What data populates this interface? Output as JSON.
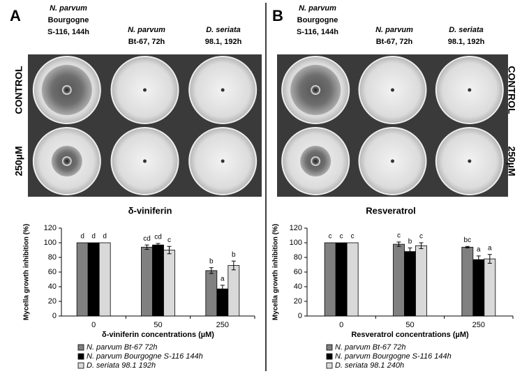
{
  "panels": [
    {
      "label": "A",
      "columns": [
        {
          "lines": [
            "N. parvum",
            "Bourgogne",
            "S-116, 144h"
          ]
        },
        {
          "lines": [
            "N. parvum",
            "Bt-67, 72h"
          ]
        },
        {
          "lines": [
            "D. seriata",
            "98.1, 192h"
          ]
        }
      ],
      "rows": [
        "CONTROL",
        "250µM"
      ]
    },
    {
      "label": "B",
      "columns": [
        {
          "lines": [
            "N. parvum",
            "Bourgogne",
            "S-116, 144h"
          ]
        },
        {
          "lines": [
            "N. parvum",
            "Bt-67, 72h"
          ]
        },
        {
          "lines": [
            "D. seriata",
            "98.1, 192h"
          ]
        }
      ],
      "rows": [
        "CONTROL",
        "250µM"
      ]
    }
  ],
  "chart_data": [
    {
      "type": "bar",
      "title": "δ-viniferin",
      "x_label": "δ-viniferin concentrations (µM)",
      "y_label": "Mycella growth inhibition (%)",
      "categories": [
        "0",
        "50",
        "250"
      ],
      "ylim": [
        0,
        120
      ],
      "yticks": [
        0,
        20,
        40,
        60,
        80,
        100,
        120
      ],
      "series": [
        {
          "name": "N. parvum Bt-67 72h",
          "color": "#808080",
          "values": [
            100,
            94,
            62
          ],
          "errors": [
            0,
            3,
            4
          ],
          "letters": [
            "d",
            "cd",
            "b"
          ]
        },
        {
          "name": "N. parvum Bourgogne S-116 144h",
          "color": "#000000",
          "values": [
            100,
            97,
            37
          ],
          "errors": [
            0,
            2,
            5
          ],
          "letters": [
            "d",
            "cd",
            "a"
          ]
        },
        {
          "name": "D. seriata 98.1 192h",
          "color": "#d9d9d9",
          "values": [
            100,
            90,
            69
          ],
          "errors": [
            0,
            5,
            6
          ],
          "letters": [
            "d",
            "c",
            "b"
          ]
        }
      ]
    },
    {
      "type": "bar",
      "title": "Resveratrol",
      "x_label": "Resveratrol concentrations (µM)",
      "y_label": "Mycella growth inhibition (%)",
      "categories": [
        "0",
        "50",
        "250"
      ],
      "ylim": [
        0,
        120
      ],
      "yticks": [
        0,
        20,
        40,
        60,
        80,
        100,
        120
      ],
      "series": [
        {
          "name": "N. parvum Bt-67 72h",
          "color": "#808080",
          "values": [
            100,
            98,
            94
          ],
          "errors": [
            0,
            3,
            1
          ],
          "letters": [
            "c",
            "c",
            "bc"
          ]
        },
        {
          "name": "N. parvum Bourgogne S-116 144h",
          "color": "#000000",
          "values": [
            100,
            88,
            77
          ],
          "errors": [
            0,
            5,
            5
          ],
          "letters": [
            "c",
            "b",
            "a"
          ]
        },
        {
          "name": "D. seriata 98.1 240h",
          "color": "#d9d9d9",
          "values": [
            100,
            96,
            78
          ],
          "errors": [
            0,
            4,
            6
          ],
          "letters": [
            "c",
            "c",
            "a"
          ]
        }
      ]
    }
  ]
}
